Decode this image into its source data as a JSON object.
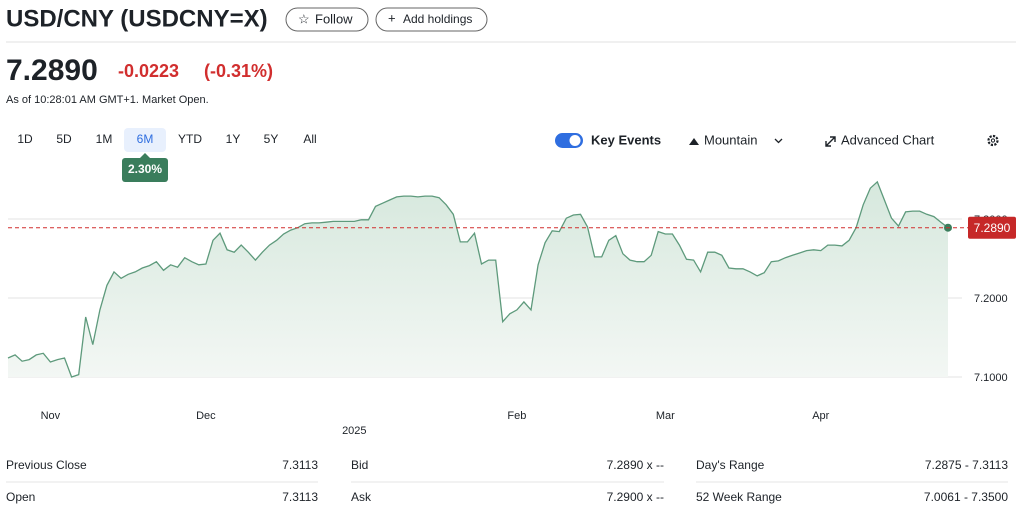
{
  "header": {
    "title": "USD/CNY (USDCNY=X)",
    "follow": "Follow",
    "add_holdings": "Add holdings"
  },
  "quote": {
    "price": "7.2890",
    "change": "-0.0223",
    "change_percent": "(-0.31%)",
    "as_of": "As of 10:28:01 AM GMT+1. Market Open."
  },
  "ranges": [
    "1D",
    "5D",
    "1M",
    "6M",
    "YTD",
    "1Y",
    "5Y",
    "All"
  ],
  "selected_range": 3,
  "range_change": "2.30%",
  "controls": {
    "key_events": "Key Events",
    "chart_style": "Mountain",
    "advanced_chart": "Advanced Chart"
  },
  "chart_data": {
    "type": "area",
    "color": "#5e9a7c",
    "categories": [
      null,
      null,
      null,
      null,
      null,
      null,
      "Nov",
      null,
      null,
      null,
      null,
      null,
      null,
      null,
      null,
      null,
      null,
      null,
      null,
      null,
      null,
      null,
      null,
      null,
      null,
      null,
      null,
      null,
      "Dec",
      null,
      null,
      null,
      null,
      null,
      null,
      null,
      null,
      null,
      null,
      null,
      null,
      null,
      null,
      null,
      null,
      null,
      null,
      null,
      null,
      "2025",
      null,
      null,
      null,
      null,
      null,
      null,
      null,
      null,
      null,
      null,
      null,
      null,
      null,
      null,
      null,
      null,
      null,
      null,
      null,
      null,
      null,
      null,
      "Feb",
      null,
      null,
      null,
      null,
      null,
      null,
      null,
      null,
      null,
      null,
      null,
      null,
      null,
      null,
      null,
      null,
      null,
      null,
      null,
      null,
      "Mar",
      null,
      null,
      null,
      null,
      null,
      null,
      null,
      null,
      null,
      null,
      null,
      null,
      null,
      null,
      null,
      null,
      null,
      null,
      null,
      null,
      null,
      "Apr",
      null,
      null,
      null,
      null,
      null,
      null,
      null,
      null,
      null,
      null,
      null,
      null,
      null,
      null,
      null,
      null,
      null,
      null
    ],
    "values": [
      7.124,
      7.128,
      7.12,
      7.122,
      7.128,
      7.13,
      7.119,
      7.122,
      7.124,
      7.1,
      7.103,
      7.176,
      7.141,
      7.185,
      7.216,
      7.233,
      7.225,
      7.23,
      7.233,
      7.238,
      7.241,
      7.246,
      7.235,
      7.242,
      7.239,
      7.251,
      7.246,
      7.242,
      7.243,
      7.273,
      7.282,
      7.261,
      7.258,
      7.267,
      7.258,
      7.248,
      7.258,
      7.267,
      7.273,
      7.281,
      7.286,
      7.289,
      7.294,
      7.295,
      7.295,
      7.296,
      7.297,
      7.297,
      7.297,
      7.297,
      7.299,
      7.299,
      7.316,
      7.32,
      7.324,
      7.328,
      7.329,
      7.329,
      7.328,
      7.329,
      7.329,
      7.327,
      7.318,
      7.306,
      7.271,
      7.271,
      7.282,
      7.243,
      7.248,
      7.248,
      7.17,
      7.18,
      7.185,
      7.195,
      7.185,
      7.242,
      7.27,
      7.285,
      7.284,
      7.301,
      7.305,
      7.306,
      7.29,
      7.252,
      7.252,
      7.273,
      7.279,
      7.256,
      7.248,
      7.246,
      7.246,
      7.254,
      7.284,
      7.281,
      7.281,
      7.267,
      7.249,
      7.248,
      7.233,
      7.258,
      7.258,
      7.254,
      7.238,
      7.237,
      7.237,
      7.233,
      7.228,
      7.232,
      7.246,
      7.247,
      7.251,
      7.254,
      7.257,
      7.26,
      7.261,
      7.26,
      7.267,
      7.267,
      7.266,
      7.273,
      7.289,
      7.318,
      7.339,
      7.347,
      7.324,
      7.301,
      7.291,
      7.309,
      7.31,
      7.31,
      7.306,
      7.303,
      7.296,
      7.289
    ],
    "ylim": [
      7.1,
      7.37
    ],
    "yticks": [
      {
        "value": 7.1,
        "label": "7.1000"
      },
      {
        "value": 7.2,
        "label": "7.2000"
      },
      {
        "value": 7.3,
        "label": "7.3000"
      }
    ],
    "grid": true,
    "price_line": {
      "value": 7.289,
      "label": "7.2890"
    }
  },
  "stats": [
    {
      "label": "Previous Close",
      "value": "7.3113"
    },
    {
      "label": "Bid",
      "value": "7.2890 x --"
    },
    {
      "label": "Day's Range",
      "value": "7.2875 - 7.3113"
    },
    {
      "label": "Open",
      "value": "7.3113"
    },
    {
      "label": "Ask",
      "value": "7.2900 x --"
    },
    {
      "label": "52 Week Range",
      "value": "7.0061 - 7.3500"
    }
  ]
}
